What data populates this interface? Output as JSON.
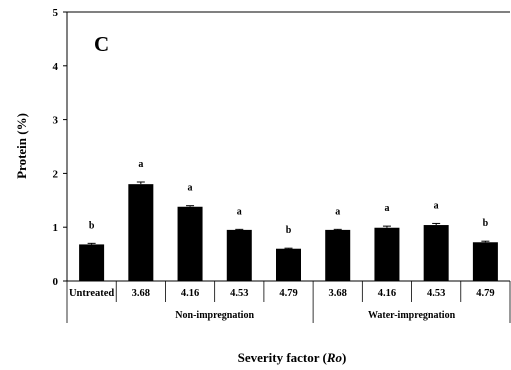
{
  "chart_data": {
    "type": "bar",
    "panel_label": "C",
    "ylabel": "Protein (%)",
    "xlabel_parts": [
      "Severity factor (",
      "Ro",
      ")"
    ],
    "ylim": [
      0,
      5
    ],
    "yticks": [
      0,
      1,
      2,
      3,
      4,
      5
    ],
    "categories": [
      "Untreated",
      "3.68",
      "4.16",
      "4.53",
      "4.79",
      "3.68",
      "4.16",
      "4.53",
      "4.79"
    ],
    "values": [
      0.68,
      1.8,
      1.38,
      0.95,
      0.6,
      0.95,
      0.99,
      1.04,
      0.72
    ],
    "errors": [
      0.02,
      0.04,
      0.02,
      0.01,
      0.01,
      0.01,
      0.03,
      0.03,
      0.02
    ],
    "significance": [
      "b",
      "a",
      "a",
      "a",
      "b",
      "a",
      "a",
      "a",
      "b"
    ],
    "groups": [
      {
        "label": "Non-impregnation",
        "start": 1,
        "end": 4
      },
      {
        "label": "Water-impregnation",
        "start": 5,
        "end": 8
      }
    ],
    "bar_color": "#000000"
  }
}
